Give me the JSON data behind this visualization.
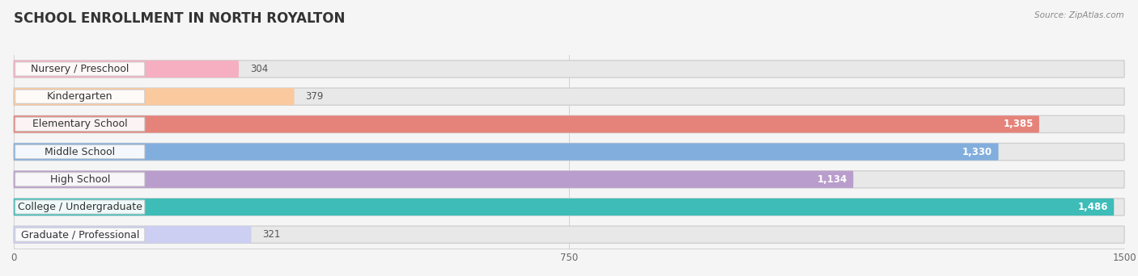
{
  "title": "SCHOOL ENROLLMENT IN NORTH ROYALTON",
  "source": "Source: ZipAtlas.com",
  "categories": [
    "Nursery / Preschool",
    "Kindergarten",
    "Elementary School",
    "Middle School",
    "High School",
    "College / Undergraduate",
    "Graduate / Professional"
  ],
  "values": [
    304,
    379,
    1385,
    1330,
    1134,
    1486,
    321
  ],
  "bar_colors": [
    "#f5afc0",
    "#fac99e",
    "#e5837a",
    "#82aedd",
    "#b99dcc",
    "#3dbcb8",
    "#cccef2"
  ],
  "xlim": [
    0,
    1500
  ],
  "xticks": [
    0,
    750,
    1500
  ],
  "background_color": "#f5f5f5",
  "bar_bg_color": "#e8e8e8",
  "title_fontsize": 12,
  "label_fontsize": 9,
  "value_fontsize": 8.5
}
